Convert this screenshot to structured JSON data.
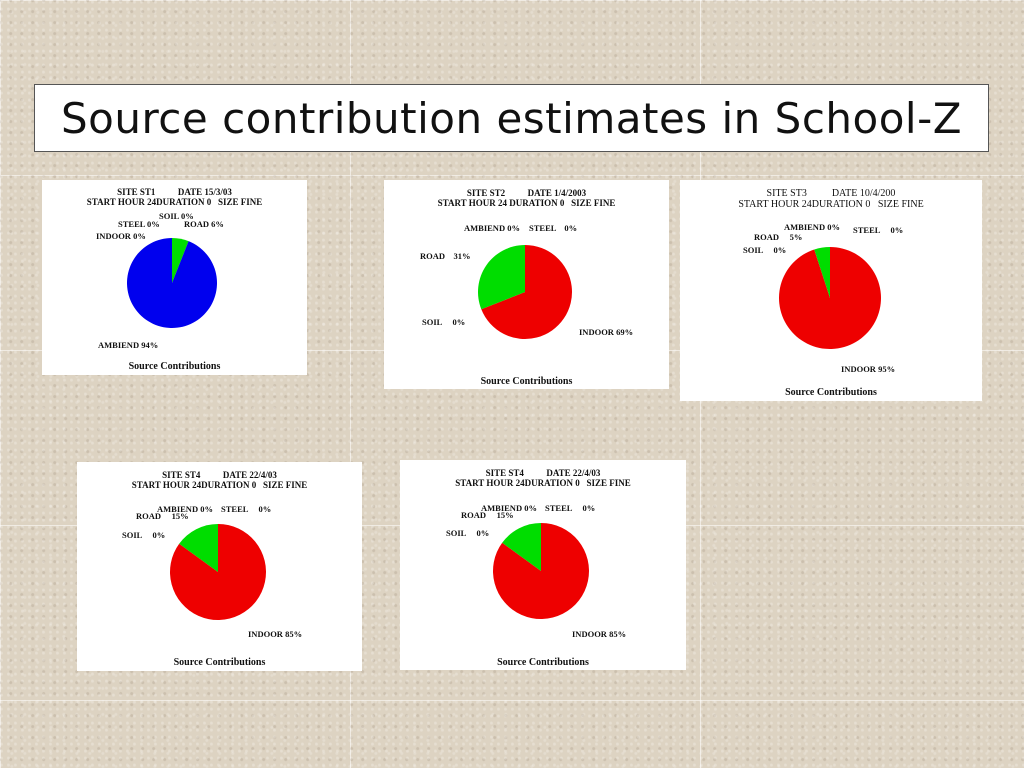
{
  "slide": {
    "title": "Source contribution estimates in School-Z"
  },
  "chart_data": [
    {
      "type": "pie",
      "header_line1": "SITE ST1          DATE 15/3/03",
      "header_line2": "START HOUR 24DURATION 0   SIZE FINE",
      "labels": [
        "AMBIEND 94%",
        "ROAD 6%",
        "SOIL 0%",
        "STEEL 0%",
        "INDOOR 0%"
      ],
      "slices": [
        {
          "name": "ROAD",
          "value": 6,
          "color": "#00dd00"
        },
        {
          "name": "AMBIEND",
          "value": 94,
          "color": "#0000ee"
        }
      ],
      "footer": "Source Contributions"
    },
    {
      "type": "pie",
      "header_line1": "SITE ST2          DATE 1/4/2003",
      "header_line2": "START HOUR 24 DURATION 0   SIZE FINE",
      "labels": [
        "AMBIEND 0%",
        "STEEL    0%",
        "ROAD    31%",
        "SOIL     0%",
        "INDOOR 69%"
      ],
      "slices": [
        {
          "name": "INDOOR",
          "value": 69,
          "color": "#ee0000"
        },
        {
          "name": "ROAD",
          "value": 31,
          "color": "#00dd00"
        }
      ],
      "footer": "Source Contributions"
    },
    {
      "type": "pie",
      "header_line1": "SITE ST3          DATE 10/4/200",
      "header_line2": "START HOUR 24DURATION 0   SIZE FINE",
      "labels": [
        "AMBIEND 0%",
        "STEEL     0%",
        "ROAD     5%",
        "SOIL     0%",
        "INDOOR 95%"
      ],
      "slices": [
        {
          "name": "INDOOR",
          "value": 95,
          "color": "#ee0000"
        },
        {
          "name": "ROAD",
          "value": 5,
          "color": "#00dd00"
        }
      ],
      "footer": "Source Contributions"
    },
    {
      "type": "pie",
      "header_line1": "SITE ST4          DATE 22/4/03",
      "header_line2": "START HOUR 24DURATION 0   SIZE FINE",
      "labels": [
        "AMBIEND 0%",
        "STEEL     0%",
        "ROAD     15%",
        "SOIL     0%",
        "INDOOR 85%"
      ],
      "slices": [
        {
          "name": "INDOOR",
          "value": 85,
          "color": "#ee0000"
        },
        {
          "name": "ROAD",
          "value": 15,
          "color": "#00dd00"
        }
      ],
      "footer": "Source Contributions"
    },
    {
      "type": "pie",
      "header_line1": "SITE ST4          DATE 22/4/03",
      "header_line2": "START HOUR 24DURATION 0   SIZE FINE",
      "labels": [
        "AMBIEND 0%",
        "STEEL     0%",
        "ROAD     15%",
        "SOIL     0%",
        "INDOOR 85%"
      ],
      "slices": [
        {
          "name": "INDOOR",
          "value": 85,
          "color": "#ee0000"
        },
        {
          "name": "ROAD",
          "value": 15,
          "color": "#00dd00"
        }
      ],
      "footer": "Source Contributions"
    }
  ]
}
